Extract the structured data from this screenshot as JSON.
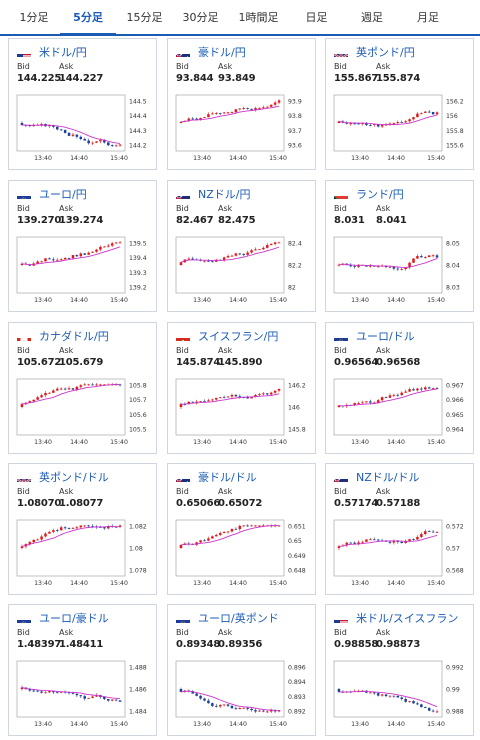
{
  "tabs": [
    {
      "label": "1分足",
      "active": false
    },
    {
      "label": "5分足",
      "active": true
    },
    {
      "label": "15分足",
      "active": false
    },
    {
      "label": "30分足",
      "active": false
    },
    {
      "label": "1時間足",
      "active": false
    },
    {
      "label": "日足",
      "active": false
    },
    {
      "label": "週足",
      "active": false
    },
    {
      "label": "月足",
      "active": false
    }
  ],
  "labels": {
    "bid": "Bid",
    "ask": "Ask"
  },
  "colors": {
    "up": "#e01818",
    "down": "#1a3f9c",
    "ma": "#cc33cc",
    "link": "#1a5bb6"
  },
  "x_ticks": [
    "13:40",
    "14:40",
    "15:40"
  ],
  "cards": [
    {
      "pair": "米ドル/円",
      "flag": "us",
      "bid": "144.225",
      "ask": "144.227",
      "y_ticks": [
        "144.5",
        "144.4",
        "144.3",
        "144.2"
      ],
      "seed": 3,
      "trend": "down"
    },
    {
      "pair": "豪ドル/円",
      "flag": "au",
      "bid": "93.844",
      "ask": "93.849",
      "y_ticks": [
        "93.9",
        "93.8",
        "93.7",
        "93.6"
      ],
      "seed": 7,
      "trend": "up"
    },
    {
      "pair": "英ポンド/円",
      "flag": "gb",
      "bid": "155.867",
      "ask": "155.874",
      "y_ticks": [
        "156.2",
        "156",
        "155.8",
        "155.6"
      ],
      "seed": 11,
      "trend": "spike"
    },
    {
      "pair": "ユーロ/円",
      "flag": "eu",
      "bid": "139.270",
      "ask": "139.274",
      "y_ticks": [
        "139.5",
        "139.4",
        "139.3",
        "139.2"
      ],
      "seed": 13,
      "trend": "up"
    },
    {
      "pair": "NZドル/円",
      "flag": "nz",
      "bid": "82.467",
      "ask": "82.475",
      "y_ticks": [
        "82.4",
        "82.2",
        "82"
      ],
      "seed": 17,
      "trend": "up"
    },
    {
      "pair": "ランド/円",
      "flag": "za",
      "bid": "8.031",
      "ask": "8.041",
      "y_ticks": [
        "8.05",
        "8.04",
        "8.03"
      ],
      "seed": 19,
      "trend": "spike"
    },
    {
      "pair": "カナダドル/円",
      "flag": "ca",
      "bid": "105.672",
      "ask": "105.679",
      "y_ticks": [
        "105.8",
        "105.7",
        "105.6",
        "105.5"
      ],
      "seed": 23,
      "trend": "up"
    },
    {
      "pair": "スイスフラン/円",
      "flag": "ch",
      "bid": "145.874",
      "ask": "145.890",
      "y_ticks": [
        "146.2",
        "146",
        "145.8"
      ],
      "seed": 29,
      "trend": "up"
    },
    {
      "pair": "ユーロ/ドル",
      "flag": "eu",
      "bid": "0.96564",
      "ask": "0.96568",
      "y_ticks": [
        "0.967",
        "0.966",
        "0.965",
        "0.964"
      ],
      "seed": 31,
      "trend": "up"
    },
    {
      "pair": "英ポンド/ドル",
      "flag": "gb",
      "bid": "1.08070",
      "ask": "1.08077",
      "y_ticks": [
        "1.082",
        "1.08",
        "1.078"
      ],
      "seed": 37,
      "trend": "up"
    },
    {
      "pair": "豪ドル/ドル",
      "flag": "au",
      "bid": "0.65066",
      "ask": "0.65072",
      "y_ticks": [
        "0.651",
        "0.65",
        "0.649",
        "0.648"
      ],
      "seed": 41,
      "trend": "up"
    },
    {
      "pair": "NZドル/ドル",
      "flag": "nz",
      "bid": "0.57174",
      "ask": "0.57188",
      "y_ticks": [
        "0.572",
        "0.57",
        "0.568"
      ],
      "seed": 43,
      "trend": "up"
    },
    {
      "pair": "ユーロ/豪ドル",
      "flag": "eu",
      "bid": "1.48397",
      "ask": "1.48411",
      "y_ticks": [
        "1.488",
        "1.486",
        "1.484"
      ],
      "seed": 47,
      "trend": "down"
    },
    {
      "pair": "ユーロ/英ポンド",
      "flag": "eu",
      "bid": "0.89348",
      "ask": "0.89356",
      "y_ticks": [
        "0.896",
        "0.894",
        "0.893",
        "0.892"
      ],
      "seed": 53,
      "trend": "down"
    },
    {
      "pair": "米ドル/スイスフラン",
      "flag": "us",
      "bid": "0.98858",
      "ask": "0.98873",
      "y_ticks": [
        "0.992",
        "0.99",
        "0.988"
      ],
      "seed": 59,
      "trend": "down"
    }
  ]
}
